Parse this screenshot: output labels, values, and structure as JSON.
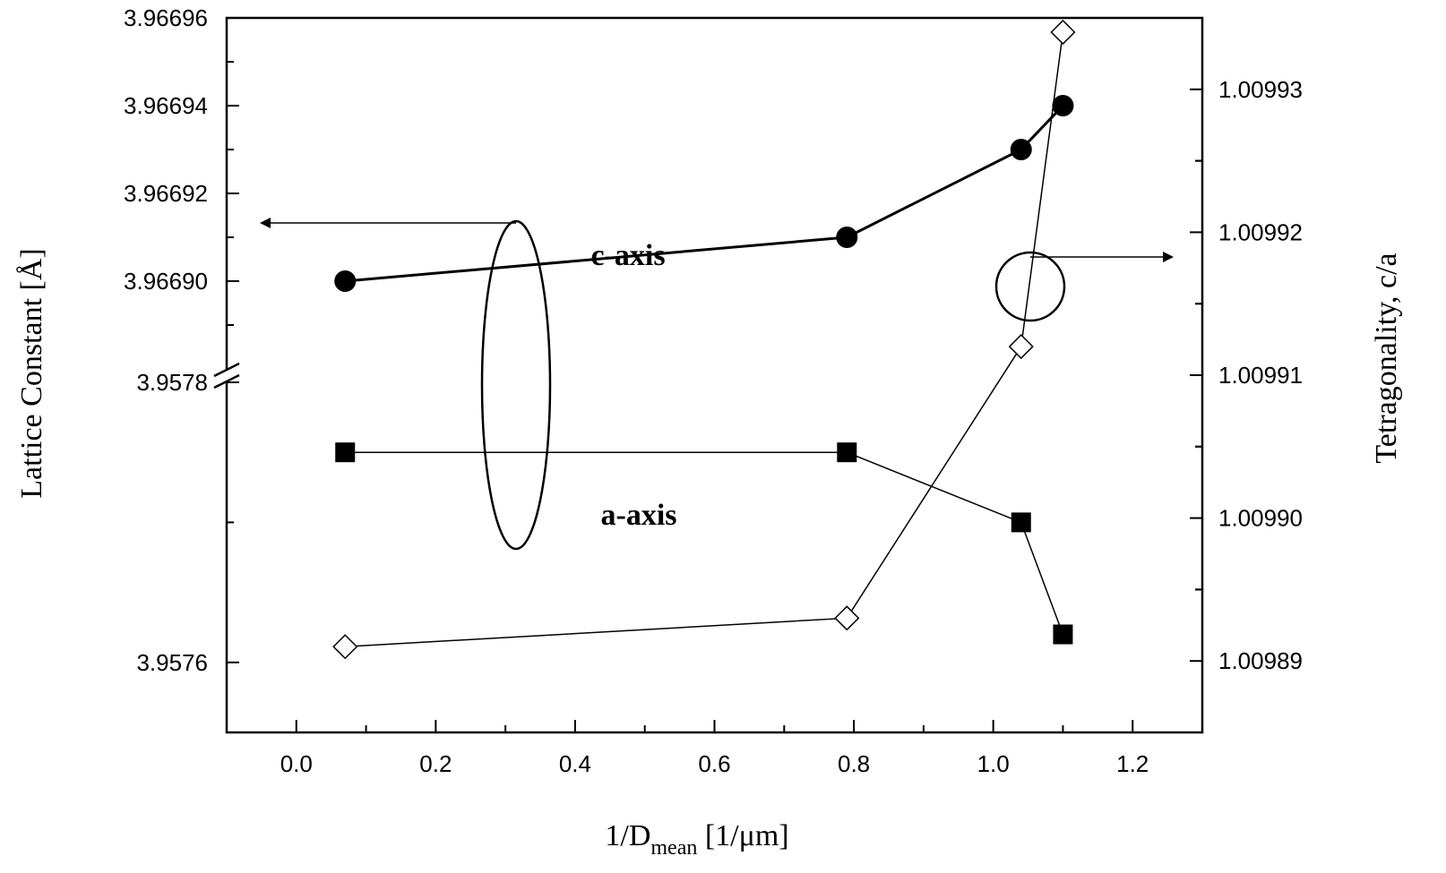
{
  "chart_data": {
    "type": "scatter",
    "x_axis": {
      "label": "1/D",
      "label_sub": "mean",
      "label_unit": " [1/μm]",
      "range": [
        -0.1,
        1.3
      ],
      "ticks": [
        0.0,
        0.2,
        0.4,
        0.6,
        0.8,
        1.0,
        1.2
      ],
      "tick_labels": [
        "0.0",
        "0.2",
        "0.4",
        "0.6",
        "0.8",
        "1.0",
        "1.2"
      ]
    },
    "y_left_axis": {
      "label": "Lattice Constant [Å]",
      "broken": true,
      "upper_segment": {
        "range": [
          3.96688,
          3.96696
        ],
        "ticks": [
          3.9669,
          3.96692,
          3.96694,
          3.96696
        ],
        "tick_labels": [
          "3.96690",
          "3.96692",
          "3.96694",
          "3.96696"
        ]
      },
      "lower_segment": {
        "range": [
          3.95755,
          3.9578
        ],
        "ticks": [
          3.9576,
          3.9578
        ],
        "tick_labels": [
          "3.9576",
          "3.9578"
        ]
      }
    },
    "y_right_axis": {
      "label": "Tetragonality, c/a",
      "range": [
        1.009885,
        1.009935
      ],
      "ticks": [
        1.00989,
        1.0099,
        1.00991,
        1.00992,
        1.00993
      ],
      "tick_labels": [
        "1.00989",
        "1.00990",
        "1.00991",
        "1.00992",
        "1.00993"
      ]
    },
    "series": [
      {
        "name": "c-axis",
        "axis": "left-upper",
        "marker": "filled-circle",
        "x": [
          0.07,
          0.79,
          1.04,
          1.1
        ],
        "y": [
          3.9669,
          3.96691,
          3.96693,
          3.96694
        ]
      },
      {
        "name": "a-axis",
        "axis": "left-lower",
        "marker": "filled-square",
        "x": [
          0.07,
          0.79,
          1.04,
          1.1
        ],
        "y": [
          3.95775,
          3.95775,
          3.9577,
          3.95762
        ]
      },
      {
        "axis": "right",
        "marker": "open-diamond",
        "x": [
          0.07,
          0.79,
          1.04,
          1.1
        ],
        "y": [
          1.009891,
          1.009893,
          1.009912,
          1.009934
        ]
      }
    ],
    "grid": false,
    "legend": "none"
  }
}
